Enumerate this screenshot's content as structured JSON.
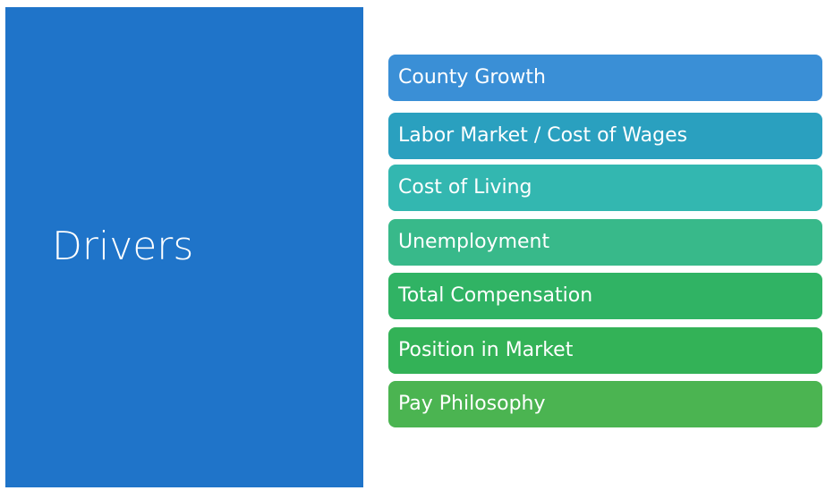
{
  "title": "Drivers",
  "items": [
    "County Growth",
    "Labor Market / Cost of Wages",
    "Cost of Living",
    "Unemployment",
    "Total Compensation",
    "Position in Market",
    "Pay Philosophy"
  ]
}
